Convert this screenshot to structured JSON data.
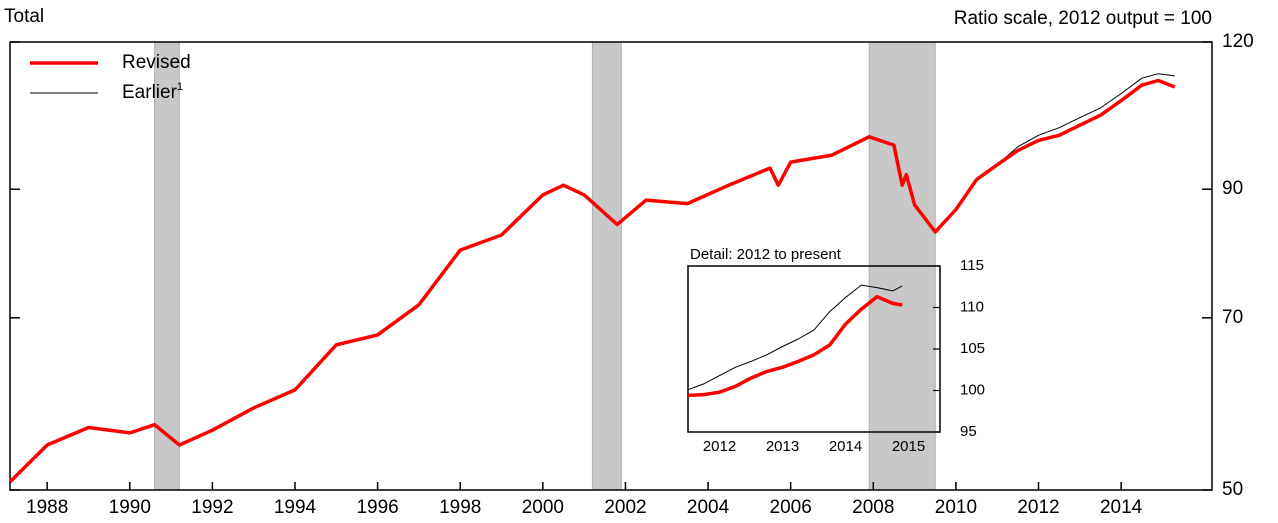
{
  "chart_data": {
    "type": "line",
    "title": "Total",
    "subtitle": "Ratio scale, 2012 output = 100",
    "log_scale": true,
    "x": [
      1987.1,
      1988.0,
      1989.0,
      1990.0,
      1990.6,
      1991.2,
      1992.0,
      1993.0,
      1994.0,
      1995.0,
      1996.0,
      1997.0,
      1998.0,
      1999.0,
      2000.0,
      2000.5,
      2001.0,
      2001.8,
      2002.5,
      2003.5,
      2004.5,
      2005.5,
      2005.7,
      2006.0,
      2007.0,
      2007.9,
      2008.5,
      2008.7,
      2008.8,
      2009.0,
      2009.5,
      2010.0,
      2010.5,
      2011.0,
      2011.5,
      2012.0,
      2012.5,
      2013.0,
      2013.5,
      2014.0,
      2014.5,
      2014.9,
      2015.3
    ],
    "series": [
      {
        "name": "Revised",
        "color": "#ff0000",
        "width": 3.5,
        "values": [
          50.8,
          54.6,
          56.5,
          55.9,
          56.8,
          54.6,
          56.2,
          58.7,
          60.8,
          66.4,
          67.7,
          71.8,
          79.9,
          82.3,
          89.0,
          90.7,
          89.0,
          84.0,
          88.1,
          87.5,
          90.7,
          93.8,
          90.7,
          94.9,
          96.2,
          99.7,
          98.1,
          90.7,
          92.6,
          87.3,
          82.8,
          86.5,
          91.7,
          94.4,
          97.1,
          99.0,
          100.0,
          102.0,
          104.0,
          107.0,
          110.3,
          111.3,
          109.9
        ]
      },
      {
        "name": "Earlier",
        "footnote": "1",
        "color": "#000000",
        "width": 1,
        "values": [
          50.8,
          54.6,
          56.5,
          55.9,
          56.8,
          54.6,
          56.2,
          58.7,
          60.8,
          66.4,
          67.7,
          71.8,
          79.9,
          82.3,
          89.0,
          90.7,
          89.0,
          84.0,
          88.1,
          87.5,
          90.7,
          93.8,
          90.7,
          94.9,
          96.2,
          99.7,
          98.1,
          90.7,
          92.6,
          87.3,
          82.8,
          86.5,
          91.7,
          94.4,
          97.8,
          100.0,
          101.5,
          103.5,
          105.5,
          108.5,
          111.8,
          112.8,
          112.3
        ]
      }
    ],
    "shaded_periods": [
      [
        1990.6,
        1991.2
      ],
      [
        2001.2,
        2001.9
      ],
      [
        2007.9,
        2009.5
      ]
    ],
    "xlim": [
      1987.1,
      2016.2
    ],
    "xticks": [
      1988,
      1990,
      1992,
      1994,
      1996,
      1998,
      2000,
      2002,
      2004,
      2006,
      2008,
      2010,
      2012,
      2014
    ],
    "ylim": [
      50,
      120
    ],
    "yticks": [
      50,
      70,
      90,
      120
    ],
    "legend": "upper left",
    "inset": {
      "title": "Detail: 2012 to present",
      "x": [
        2012.0,
        2012.25,
        2012.5,
        2012.75,
        2013.0,
        2013.25,
        2013.5,
        2013.75,
        2014.0,
        2014.25,
        2014.5,
        2014.75,
        2015.0,
        2015.25,
        2015.4
      ],
      "series": [
        {
          "name": "Revised",
          "color": "#ff0000",
          "width": 3.5,
          "values": [
            99.4,
            99.5,
            99.8,
            100.5,
            101.5,
            102.3,
            102.8,
            103.5,
            104.3,
            105.5,
            108.0,
            109.8,
            111.3,
            110.5,
            110.3
          ]
        },
        {
          "name": "Earlier",
          "color": "#000000",
          "width": 1,
          "values": [
            100.1,
            100.8,
            101.8,
            102.8,
            103.5,
            104.3,
            105.3,
            106.2,
            107.3,
            109.5,
            111.2,
            112.7,
            112.4,
            112.0,
            112.6
          ]
        }
      ],
      "xlim": [
        2012.0,
        2016.0
      ],
      "xticks": [
        {
          "value": 2012.5,
          "label": "2012"
        },
        {
          "value": 2013.5,
          "label": "2013"
        },
        {
          "value": 2014.5,
          "label": "2014"
        },
        {
          "value": 2015.5,
          "label": "2015"
        }
      ],
      "ylim": [
        95,
        115
      ],
      "yticks": [
        95,
        100,
        105,
        110,
        115
      ]
    }
  }
}
